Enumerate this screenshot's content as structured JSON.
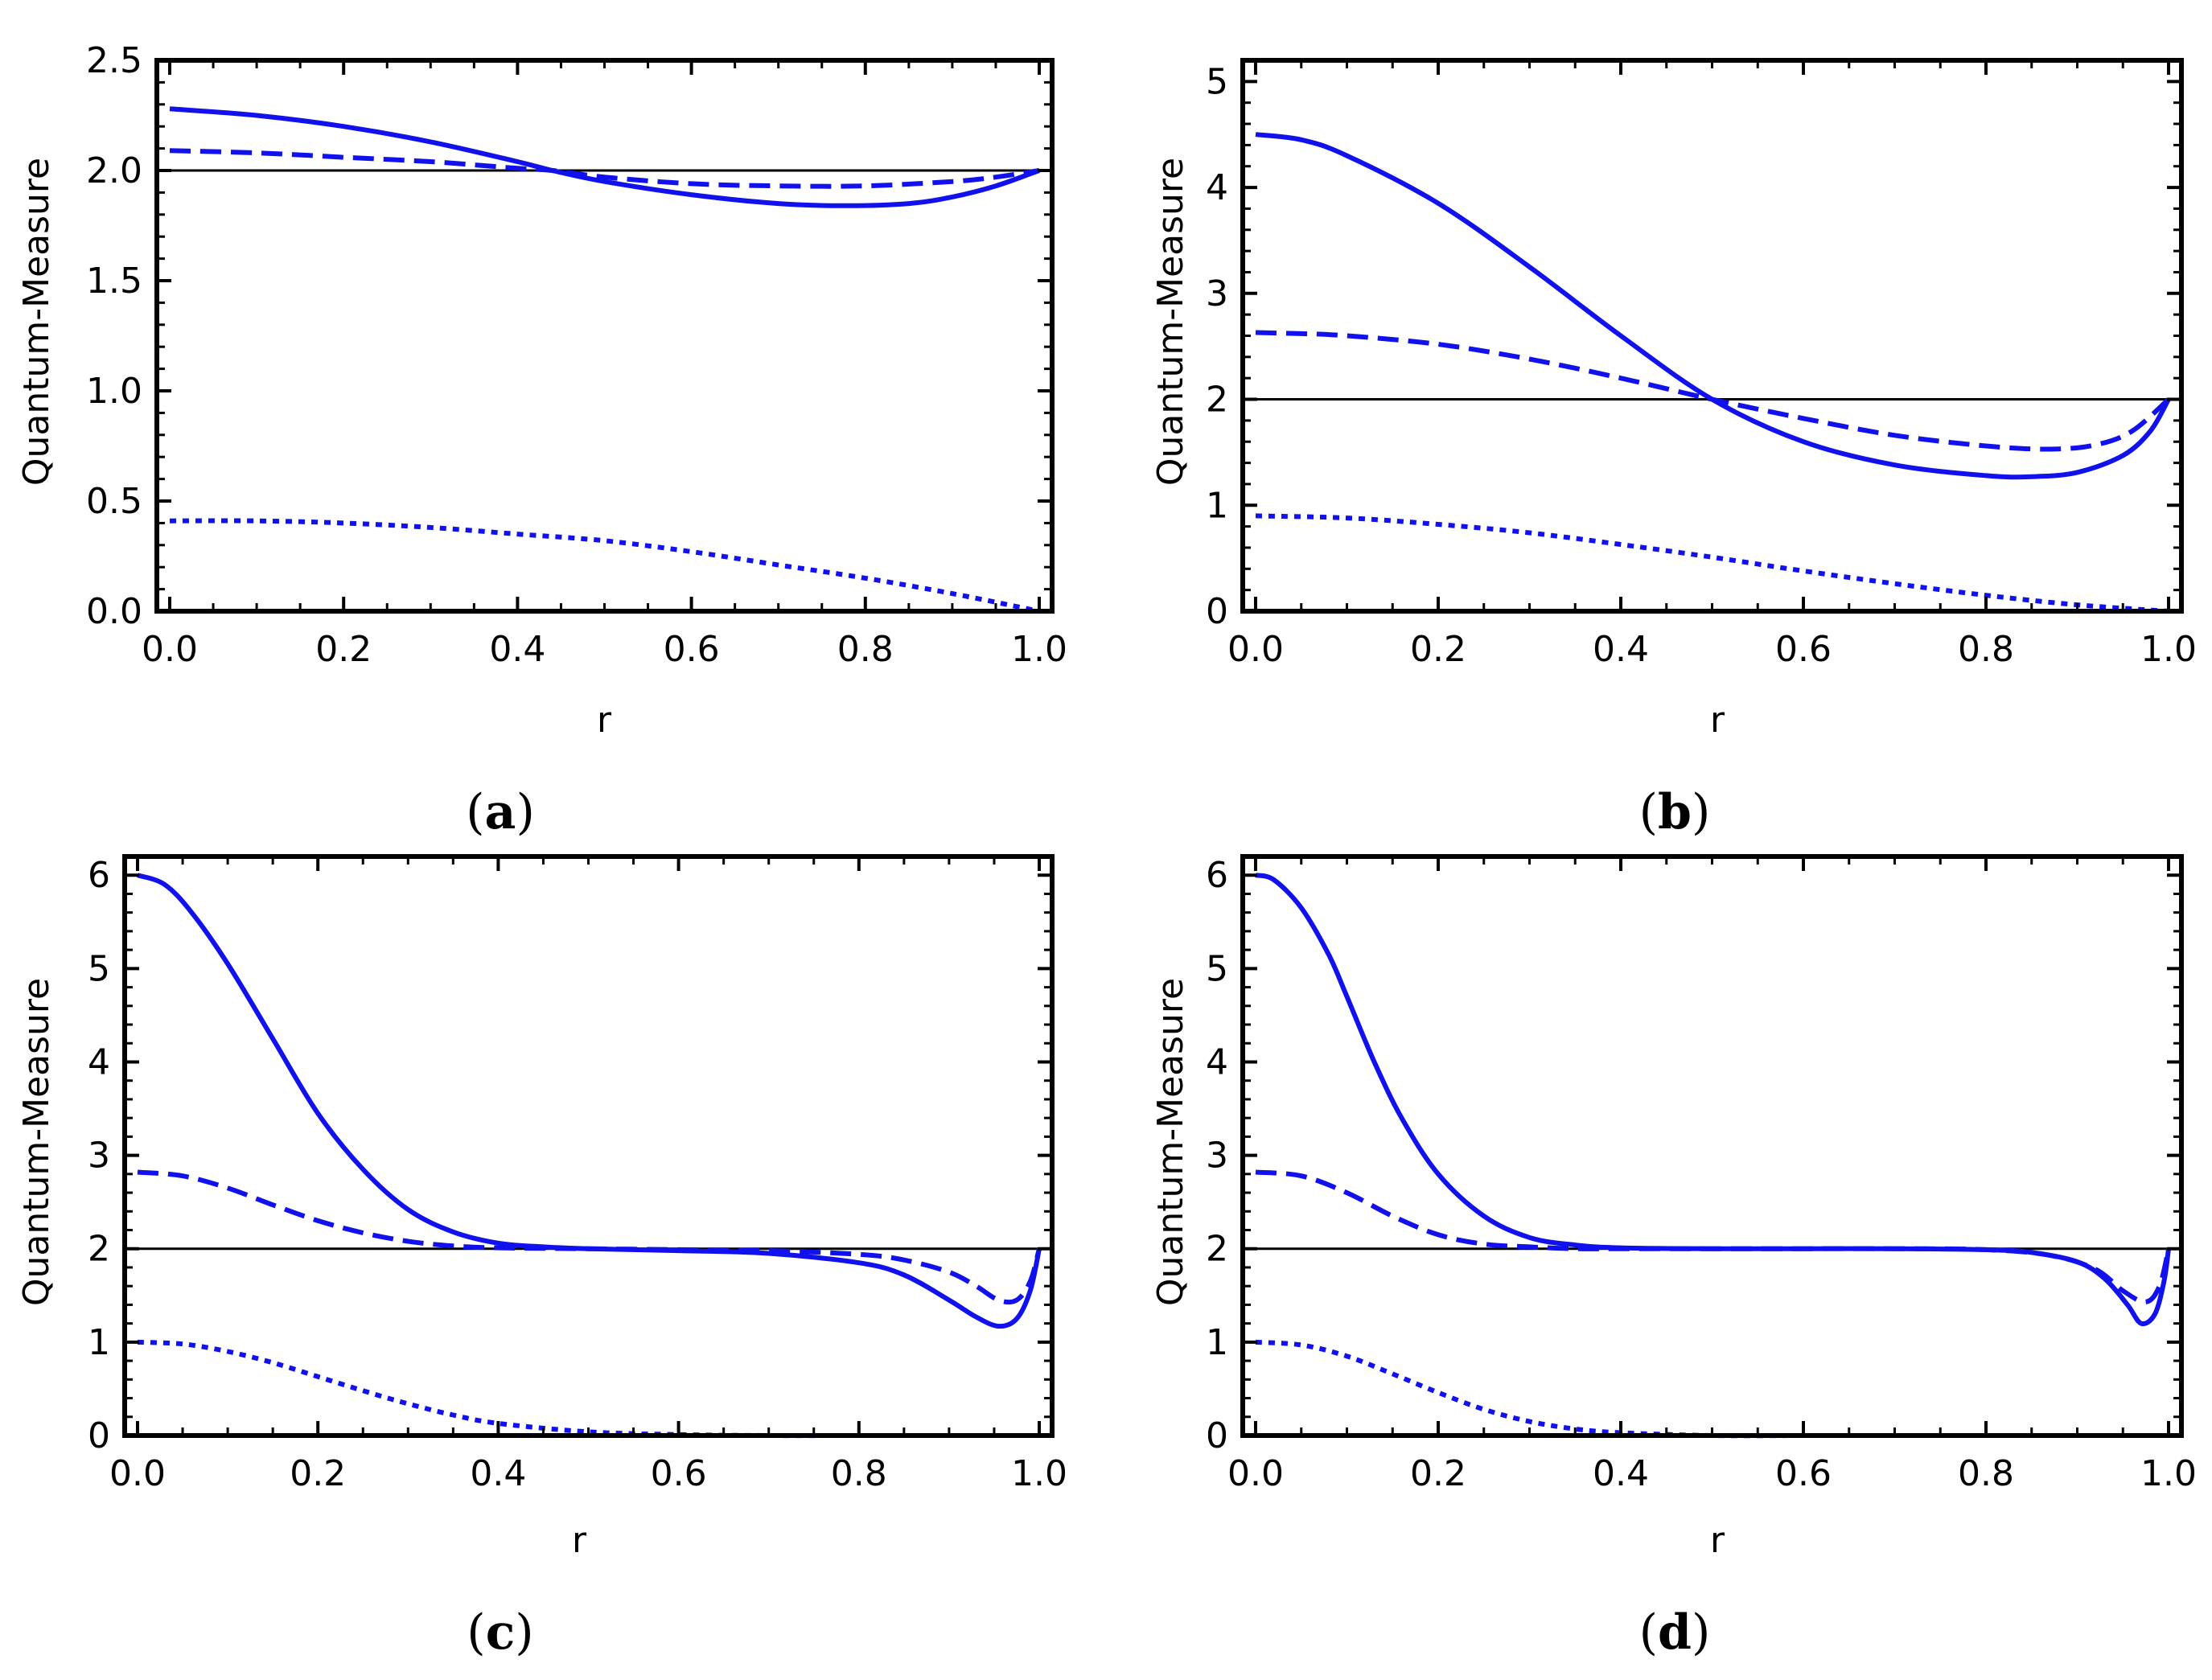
{
  "chart_data": [
    {
      "type": "line",
      "panel_label": "(a)",
      "panel_letter": "a",
      "xlabel": "r",
      "ylabel": "Quantum-Measure",
      "xlim": [
        0,
        1
      ],
      "ylim": [
        0,
        2.5
      ],
      "xticks": [
        "0.0",
        "0.2",
        "0.4",
        "0.6",
        "0.8",
        "1.0"
      ],
      "yticks": [
        "0.0",
        "0.5",
        "1.0",
        "1.5",
        "2.0",
        "2.5"
      ],
      "reference_line": 2.0,
      "color": "#1111ee",
      "series": [
        {
          "name": "solid",
          "style": "solid",
          "x": [
            0,
            0.1,
            0.2,
            0.3,
            0.4,
            0.44,
            0.5,
            0.6,
            0.7,
            0.78,
            0.85,
            0.9,
            0.95,
            1.0
          ],
          "y": [
            2.28,
            2.25,
            2.2,
            2.13,
            2.04,
            2.0,
            1.95,
            1.89,
            1.85,
            1.84,
            1.85,
            1.88,
            1.93,
            2.0
          ]
        },
        {
          "name": "dashed",
          "style": "dashed",
          "x": [
            0,
            0.1,
            0.2,
            0.3,
            0.4,
            0.44,
            0.5,
            0.6,
            0.7,
            0.8,
            0.9,
            0.95,
            1.0
          ],
          "y": [
            2.09,
            2.08,
            2.06,
            2.04,
            2.01,
            2.0,
            1.97,
            1.94,
            1.93,
            1.93,
            1.95,
            1.97,
            2.0
          ]
        },
        {
          "name": "dotted",
          "style": "dotted",
          "x": [
            0,
            0.1,
            0.2,
            0.3,
            0.4,
            0.5,
            0.6,
            0.7,
            0.8,
            0.9,
            1.0
          ],
          "y": [
            0.41,
            0.41,
            0.4,
            0.38,
            0.35,
            0.32,
            0.27,
            0.21,
            0.15,
            0.08,
            0.0
          ]
        }
      ]
    },
    {
      "type": "line",
      "panel_label": "(b)",
      "panel_letter": "b",
      "xlabel": "r",
      "ylabel": "Quantum-Measure",
      "xlim": [
        0,
        1
      ],
      "ylim": [
        0,
        5.2
      ],
      "xticks": [
        "0.0",
        "0.2",
        "0.4",
        "0.6",
        "0.8",
        "1.0"
      ],
      "yticks": [
        "0",
        "1",
        "2",
        "3",
        "4",
        "5"
      ],
      "reference_line": 2.0,
      "color": "#1111ee",
      "series": [
        {
          "name": "solid",
          "style": "solid",
          "x": [
            0,
            0.05,
            0.1,
            0.2,
            0.3,
            0.4,
            0.5,
            0.6,
            0.7,
            0.8,
            0.85,
            0.9,
            0.95,
            0.98,
            1.0
          ],
          "y": [
            4.5,
            4.45,
            4.3,
            3.85,
            3.25,
            2.6,
            2.0,
            1.6,
            1.38,
            1.28,
            1.27,
            1.31,
            1.47,
            1.7,
            2.0
          ]
        },
        {
          "name": "dashed",
          "style": "dashed",
          "x": [
            0,
            0.05,
            0.1,
            0.2,
            0.3,
            0.4,
            0.5,
            0.6,
            0.7,
            0.8,
            0.87,
            0.92,
            0.96,
            1.0
          ],
          "y": [
            2.63,
            2.62,
            2.6,
            2.52,
            2.38,
            2.2,
            2.0,
            1.82,
            1.66,
            1.56,
            1.53,
            1.57,
            1.7,
            2.0
          ]
        },
        {
          "name": "dotted",
          "style": "dotted",
          "x": [
            0,
            0.1,
            0.2,
            0.3,
            0.4,
            0.5,
            0.6,
            0.7,
            0.8,
            0.9,
            1.0
          ],
          "y": [
            0.9,
            0.88,
            0.82,
            0.74,
            0.63,
            0.51,
            0.38,
            0.26,
            0.15,
            0.06,
            0.0
          ]
        }
      ]
    },
    {
      "type": "line",
      "panel_label": "(c)",
      "panel_letter": "c",
      "xlabel": "r",
      "ylabel": "Quantum-Measure",
      "xlim": [
        0,
        1
      ],
      "ylim": [
        0,
        6.2
      ],
      "xticks": [
        "0.0",
        "0.2",
        "0.4",
        "0.6",
        "0.8",
        "1.0"
      ],
      "yticks": [
        "0",
        "1",
        "2",
        "3",
        "4",
        "5",
        "6"
      ],
      "reference_line": 2.0,
      "color": "#1111ee",
      "series": [
        {
          "name": "solid",
          "style": "solid",
          "x": [
            0,
            0.03,
            0.06,
            0.1,
            0.15,
            0.2,
            0.25,
            0.3,
            0.35,
            0.4,
            0.45,
            0.5,
            0.6,
            0.7,
            0.8,
            0.85,
            0.9,
            0.93,
            0.955,
            0.975,
            0.99,
            1.0
          ],
          "y": [
            6.0,
            5.9,
            5.6,
            5.05,
            4.25,
            3.45,
            2.85,
            2.42,
            2.18,
            2.06,
            2.02,
            2.0,
            1.98,
            1.95,
            1.85,
            1.72,
            1.45,
            1.27,
            1.17,
            1.25,
            1.55,
            2.0
          ]
        },
        {
          "name": "dashed",
          "style": "dashed",
          "x": [
            0,
            0.05,
            0.1,
            0.15,
            0.2,
            0.25,
            0.3,
            0.35,
            0.4,
            0.5,
            0.6,
            0.7,
            0.8,
            0.85,
            0.9,
            0.93,
            0.955,
            0.975,
            0.99,
            1.0
          ],
          "y": [
            2.82,
            2.78,
            2.65,
            2.47,
            2.3,
            2.17,
            2.08,
            2.03,
            2.01,
            2.0,
            1.99,
            1.98,
            1.94,
            1.88,
            1.75,
            1.6,
            1.45,
            1.45,
            1.65,
            2.0
          ]
        },
        {
          "name": "dotted",
          "style": "dotted",
          "x": [
            0,
            0.05,
            0.1,
            0.15,
            0.2,
            0.25,
            0.3,
            0.35,
            0.4,
            0.5,
            0.6,
            0.7,
            0.8,
            0.9,
            1.0
          ],
          "y": [
            1.0,
            0.98,
            0.9,
            0.78,
            0.63,
            0.48,
            0.34,
            0.22,
            0.13,
            0.04,
            0.01,
            0.0,
            0.0,
            0.0,
            0.0
          ]
        }
      ]
    },
    {
      "type": "line",
      "panel_label": "(d)",
      "panel_letter": "d",
      "xlabel": "r",
      "ylabel": "Quantum-Measure",
      "xlim": [
        0,
        1
      ],
      "ylim": [
        0,
        6.2
      ],
      "xticks": [
        "0.0",
        "0.2",
        "0.4",
        "0.6",
        "0.8",
        "1.0"
      ],
      "yticks": [
        "0",
        "1",
        "2",
        "3",
        "4",
        "5",
        "6"
      ],
      "reference_line": 2.0,
      "color": "#1111ee",
      "series": [
        {
          "name": "solid",
          "style": "solid",
          "x": [
            0,
            0.02,
            0.05,
            0.08,
            0.1,
            0.13,
            0.16,
            0.2,
            0.25,
            0.3,
            0.35,
            0.4,
            0.5,
            0.6,
            0.7,
            0.8,
            0.85,
            0.9,
            0.93,
            0.955,
            0.97,
            0.985,
            0.995,
            1.0
          ],
          "y": [
            6.0,
            5.95,
            5.65,
            5.15,
            4.7,
            4.0,
            3.4,
            2.8,
            2.35,
            2.12,
            2.04,
            2.01,
            2.0,
            2.0,
            2.0,
            1.99,
            1.96,
            1.86,
            1.68,
            1.4,
            1.2,
            1.3,
            1.65,
            2.0
          ]
        },
        {
          "name": "dashed",
          "style": "dashed",
          "x": [
            0,
            0.05,
            0.1,
            0.15,
            0.2,
            0.25,
            0.3,
            0.35,
            0.4,
            0.5,
            0.6,
            0.7,
            0.8,
            0.87,
            0.92,
            0.95,
            0.975,
            0.99,
            1.0
          ],
          "y": [
            2.82,
            2.78,
            2.6,
            2.35,
            2.15,
            2.05,
            2.02,
            2.0,
            2.0,
            2.0,
            2.0,
            2.0,
            1.99,
            1.93,
            1.78,
            1.55,
            1.43,
            1.6,
            2.0
          ]
        },
        {
          "name": "dotted",
          "style": "dotted",
          "x": [
            0,
            0.05,
            0.1,
            0.15,
            0.2,
            0.25,
            0.3,
            0.35,
            0.4,
            0.5,
            0.6,
            0.7,
            0.8,
            0.9,
            1.0
          ],
          "y": [
            1.0,
            0.97,
            0.85,
            0.66,
            0.46,
            0.28,
            0.15,
            0.07,
            0.03,
            0.0,
            0.0,
            0.0,
            0.0,
            0.0,
            0.0
          ]
        }
      ]
    }
  ]
}
